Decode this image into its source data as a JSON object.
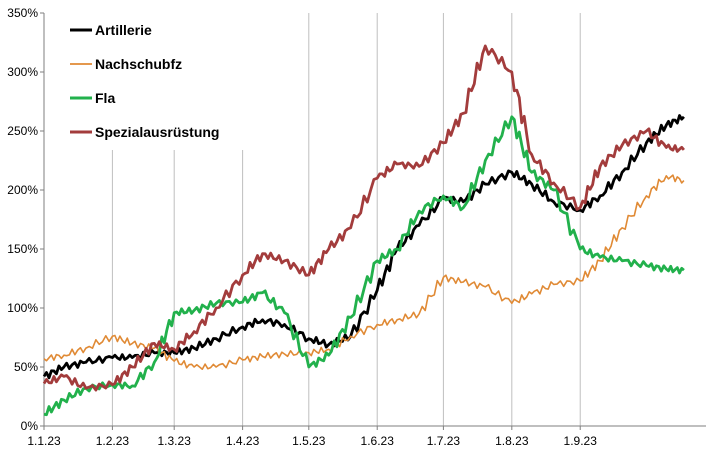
{
  "chart_data": {
    "type": "line",
    "title": "",
    "xlabel": "",
    "ylabel": "",
    "x_range": [
      "2023-01-01",
      "2023-10-28"
    ],
    "ylim": [
      0,
      350
    ],
    "y_ticks": [
      0,
      50,
      100,
      150,
      200,
      250,
      300,
      350
    ],
    "y_tick_labels": [
      "0%",
      "50%",
      "100%",
      "150%",
      "200%",
      "250%",
      "300%",
      "350%"
    ],
    "x_ticks": [
      "2023-01-01",
      "2023-02-01",
      "2023-03-01",
      "2023-04-01",
      "2023-05-01",
      "2023-06-01",
      "2023-07-01",
      "2023-08-01",
      "2023-09-01"
    ],
    "x_tick_labels": [
      "1.1.23",
      "1.2.23",
      "1.3.23",
      "1.4.23",
      "1.5.23",
      "1.6.23",
      "1.7.23",
      "1.8.23",
      "1.9.23"
    ],
    "grid": "vertical",
    "legend_position": "top-left",
    "series": [
      {
        "name": "Artillerie",
        "color": "#000000",
        "points": [
          [
            "2023-01-01",
            42
          ],
          [
            "2023-01-10",
            50
          ],
          [
            "2023-01-20",
            54
          ],
          [
            "2023-02-01",
            58
          ],
          [
            "2023-02-10",
            58
          ],
          [
            "2023-02-20",
            62
          ],
          [
            "2023-03-01",
            62
          ],
          [
            "2023-03-10",
            66
          ],
          [
            "2023-03-20",
            74
          ],
          [
            "2023-04-01",
            84
          ],
          [
            "2023-04-10",
            90
          ],
          [
            "2023-04-20",
            86
          ],
          [
            "2023-05-01",
            74
          ],
          [
            "2023-05-10",
            69
          ],
          [
            "2023-05-20",
            76
          ],
          [
            "2023-06-01",
            115
          ],
          [
            "2023-06-10",
            150
          ],
          [
            "2023-06-20",
            170
          ],
          [
            "2023-07-01",
            193
          ],
          [
            "2023-07-10",
            190
          ],
          [
            "2023-07-20",
            205
          ],
          [
            "2023-08-01",
            215
          ],
          [
            "2023-08-10",
            205
          ],
          [
            "2023-08-20",
            190
          ],
          [
            "2023-09-01",
            183
          ],
          [
            "2023-09-10",
            195
          ],
          [
            "2023-09-20",
            215
          ],
          [
            "2023-10-01",
            240
          ],
          [
            "2023-10-10",
            255
          ],
          [
            "2023-10-18",
            262
          ]
        ]
      },
      {
        "name": "Nachschubfz",
        "color": "#e08a35",
        "points": [
          [
            "2023-01-01",
            57
          ],
          [
            "2023-01-10",
            60
          ],
          [
            "2023-01-20",
            66
          ],
          [
            "2023-02-01",
            76
          ],
          [
            "2023-02-10",
            70
          ],
          [
            "2023-02-20",
            66
          ],
          [
            "2023-03-01",
            55
          ],
          [
            "2023-03-10",
            50
          ],
          [
            "2023-03-20",
            50
          ],
          [
            "2023-04-01",
            56
          ],
          [
            "2023-04-10",
            59
          ],
          [
            "2023-04-20",
            61
          ],
          [
            "2023-05-01",
            62
          ],
          [
            "2023-05-10",
            65
          ],
          [
            "2023-05-20",
            76
          ],
          [
            "2023-06-01",
            86
          ],
          [
            "2023-06-10",
            90
          ],
          [
            "2023-06-20",
            95
          ],
          [
            "2023-07-01",
            126
          ],
          [
            "2023-07-10",
            122
          ],
          [
            "2023-07-20",
            118
          ],
          [
            "2023-08-01",
            104
          ],
          [
            "2023-08-10",
            112
          ],
          [
            "2023-08-20",
            120
          ],
          [
            "2023-09-01",
            123
          ],
          [
            "2023-09-10",
            140
          ],
          [
            "2023-09-20",
            168
          ],
          [
            "2023-10-01",
            195
          ],
          [
            "2023-10-10",
            212
          ],
          [
            "2023-10-18",
            208
          ]
        ]
      },
      {
        "name": "Fla",
        "color": "#22b14c",
        "points": [
          [
            "2023-01-01",
            10
          ],
          [
            "2023-01-10",
            22
          ],
          [
            "2023-01-20",
            32
          ],
          [
            "2023-02-01",
            35
          ],
          [
            "2023-02-10",
            34
          ],
          [
            "2023-02-20",
            54
          ],
          [
            "2023-03-01",
            96
          ],
          [
            "2023-03-10",
            98
          ],
          [
            "2023-03-20",
            104
          ],
          [
            "2023-04-01",
            105
          ],
          [
            "2023-04-10",
            113
          ],
          [
            "2023-04-20",
            96
          ],
          [
            "2023-05-01",
            50
          ],
          [
            "2023-05-10",
            60
          ],
          [
            "2023-05-20",
            92
          ],
          [
            "2023-06-01",
            140
          ],
          [
            "2023-06-10",
            150
          ],
          [
            "2023-06-20",
            182
          ],
          [
            "2023-07-01",
            195
          ],
          [
            "2023-07-10",
            185
          ],
          [
            "2023-07-20",
            225
          ],
          [
            "2023-08-01",
            262
          ],
          [
            "2023-08-10",
            215
          ],
          [
            "2023-08-20",
            200
          ],
          [
            "2023-09-01",
            150
          ],
          [
            "2023-09-10",
            143
          ],
          [
            "2023-09-20",
            140
          ],
          [
            "2023-10-01",
            136
          ],
          [
            "2023-10-10",
            133
          ],
          [
            "2023-10-18",
            132
          ]
        ]
      },
      {
        "name": "Spezialausrüstung",
        "color": "#a33c3c",
        "points": [
          [
            "2023-01-01",
            36
          ],
          [
            "2023-01-10",
            42
          ],
          [
            "2023-01-20",
            32
          ],
          [
            "2023-02-01",
            35
          ],
          [
            "2023-02-10",
            50
          ],
          [
            "2023-02-20",
            70
          ],
          [
            "2023-03-01",
            65
          ],
          [
            "2023-03-10",
            80
          ],
          [
            "2023-03-20",
            100
          ],
          [
            "2023-04-01",
            128
          ],
          [
            "2023-04-10",
            146
          ],
          [
            "2023-04-20",
            140
          ],
          [
            "2023-05-01",
            128
          ],
          [
            "2023-05-10",
            150
          ],
          [
            "2023-05-20",
            168
          ],
          [
            "2023-06-01",
            210
          ],
          [
            "2023-06-10",
            222
          ],
          [
            "2023-06-20",
            220
          ],
          [
            "2023-07-01",
            240
          ],
          [
            "2023-07-10",
            265
          ],
          [
            "2023-07-20",
            322
          ],
          [
            "2023-08-01",
            300
          ],
          [
            "2023-08-10",
            230
          ],
          [
            "2023-08-20",
            206
          ],
          [
            "2023-09-01",
            185
          ],
          [
            "2023-09-10",
            220
          ],
          [
            "2023-09-20",
            238
          ],
          [
            "2023-10-01",
            250
          ],
          [
            "2023-10-10",
            236
          ],
          [
            "2023-10-18",
            234
          ]
        ]
      }
    ]
  }
}
